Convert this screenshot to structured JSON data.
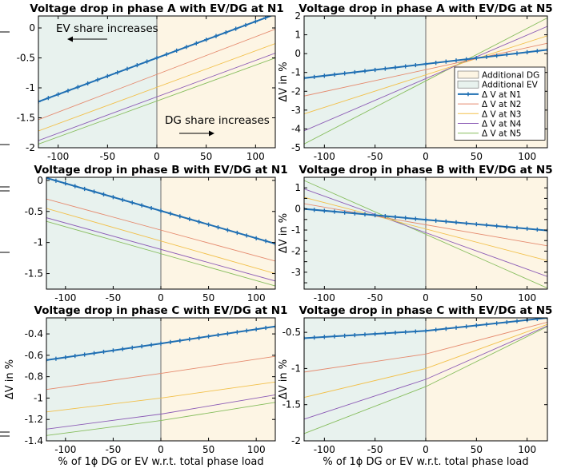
{
  "colors": {
    "ev_region": "#e8f2ee",
    "dg_region": "#fdf5e4",
    "N1": "#1f6fb3",
    "N2": "#e58a6e",
    "N3": "#f2c04a",
    "N4": "#8c5cb6",
    "N5": "#86bd5d"
  },
  "annotations": {
    "ev_share": "EV share increases",
    "dg_share": "DG share increases"
  },
  "chart_data": [
    {
      "type": "line",
      "title": "Voltage drop in phase A with EV/DG at N1",
      "xlabel": "",
      "ylabel": "",
      "xlim": [
        -120,
        120
      ],
      "ylim": [
        -2,
        0.2
      ],
      "xticks": [
        -100,
        -50,
        0,
        50,
        100
      ],
      "yticks": [
        0,
        -0.5,
        -1,
        -1.5,
        -2
      ],
      "ytick_labels": [
        "0",
        "-0.5",
        "-1",
        "-1.5",
        "-2"
      ],
      "regions": [
        {
          "label": "",
          "from": -120,
          "to": 0
        },
        {
          "label": "",
          "from": 0,
          "to": 120
        }
      ],
      "series": [
        {
          "key": "N1",
          "name": "",
          "x": [
            -120,
            120
          ],
          "y": [
            -1.23,
            0.23
          ],
          "markers": true
        },
        {
          "key": "N2",
          "name": "",
          "x": [
            -120,
            120
          ],
          "y": [
            -1.53,
            -0.02
          ],
          "markers": false
        },
        {
          "key": "N3",
          "name": "",
          "x": [
            -120,
            120
          ],
          "y": [
            -1.72,
            -0.26
          ],
          "markers": false
        },
        {
          "key": "N4",
          "name": "",
          "x": [
            -120,
            120
          ],
          "y": [
            -1.88,
            -0.42
          ],
          "markers": false
        },
        {
          "key": "N5",
          "name": "",
          "x": [
            -120,
            120
          ],
          "y": [
            -1.94,
            -0.5
          ],
          "markers": false
        }
      ]
    },
    {
      "type": "line",
      "title": "Voltage drop in phase A with EV/DG at N5",
      "xlabel": "",
      "ylabel": "ΔV in %",
      "xlim": [
        -120,
        120
      ],
      "ylim": [
        -5,
        2
      ],
      "xticks": [
        -100,
        -50,
        0,
        50,
        100
      ],
      "yticks": [
        2,
        1,
        0,
        -1,
        -2,
        -3,
        -4,
        -5
      ],
      "ytick_labels": [
        "2",
        "1",
        "0",
        "-1",
        "-2",
        "-3",
        "-4",
        "-5"
      ],
      "regions": [
        {
          "label": "Additional EV",
          "from": -120,
          "to": 0
        },
        {
          "label": "Additional DG",
          "from": 0,
          "to": 120
        }
      ],
      "legend_position": "right",
      "series": [
        {
          "key": "N1",
          "name": "Δ V at N1",
          "x": [
            -120,
            120
          ],
          "y": [
            -1.3,
            0.2
          ],
          "markers": true
        },
        {
          "key": "N2",
          "name": "Δ V at N2",
          "x": [
            -120,
            120
          ],
          "y": [
            -2.25,
            0.55
          ],
          "markers": false
        },
        {
          "key": "N3",
          "name": "Δ V at N3",
          "x": [
            -120,
            120
          ],
          "y": [
            -3.2,
            0.95
          ],
          "markers": false
        },
        {
          "key": "N4",
          "name": "Δ V at N4",
          "x": [
            -120,
            120
          ],
          "y": [
            -4.1,
            1.45
          ],
          "markers": false
        },
        {
          "key": "N5",
          "name": "Δ V at N5",
          "x": [
            -120,
            120
          ],
          "y": [
            -4.8,
            1.9
          ],
          "markers": false
        }
      ]
    },
    {
      "type": "line",
      "title": "Voltage drop in phase B with EV/DG at N1",
      "xlabel": "",
      "ylabel": "",
      "xlim": [
        -120,
        120
      ],
      "ylim": [
        -1.75,
        0.05
      ],
      "xticks": [
        -100,
        -50,
        0,
        50,
        100
      ],
      "yticks": [
        0,
        -0.5,
        -1,
        -1.5
      ],
      "ytick_labels": [
        "0",
        "-0.5",
        "-1",
        "-1.5"
      ],
      "regions": [
        {
          "label": "",
          "from": -120,
          "to": 0
        },
        {
          "label": "",
          "from": 0,
          "to": 120
        }
      ],
      "series": [
        {
          "key": "N1",
          "name": "",
          "x": [
            -120,
            120
          ],
          "y": [
            0.04,
            -1.02
          ],
          "markers": true
        },
        {
          "key": "N2",
          "name": "",
          "x": [
            -120,
            120
          ],
          "y": [
            -0.3,
            -1.3
          ],
          "markers": false
        },
        {
          "key": "N3",
          "name": "",
          "x": [
            -120,
            120
          ],
          "y": [
            -0.45,
            -1.5
          ],
          "markers": false
        },
        {
          "key": "N4",
          "name": "",
          "x": [
            -120,
            120
          ],
          "y": [
            -0.6,
            -1.62
          ],
          "markers": false
        },
        {
          "key": "N5",
          "name": "",
          "x": [
            -120,
            120
          ],
          "y": [
            -0.66,
            -1.7
          ],
          "markers": false
        }
      ]
    },
    {
      "type": "line",
      "title": "Voltage drop in phase B with EV/DG at N5",
      "xlabel": "",
      "ylabel": "ΔV in %",
      "xlim": [
        -120,
        120
      ],
      "ylim": [
        -3.8,
        1.5
      ],
      "xticks": [
        -100,
        -50,
        0,
        50,
        100
      ],
      "yticks": [
        1,
        0.5,
        0,
        -0.5,
        -1,
        -1.5,
        -2,
        -2.5,
        -3,
        -3.5
      ],
      "ytick_labels": [
        "1",
        "",
        "0",
        "",
        "-1",
        "",
        "-2",
        "",
        "-3",
        ""
      ],
      "regions": [
        {
          "label": "",
          "from": -120,
          "to": 0
        },
        {
          "label": "",
          "from": 0,
          "to": 120
        }
      ],
      "series": [
        {
          "key": "N1",
          "name": "",
          "x": [
            -120,
            120
          ],
          "y": [
            0.0,
            -1.02
          ],
          "markers": true
        },
        {
          "key": "N2",
          "name": "",
          "x": [
            -120,
            120
          ],
          "y": [
            0.25,
            -1.75
          ],
          "markers": false
        },
        {
          "key": "N3",
          "name": "",
          "x": [
            -120,
            120
          ],
          "y": [
            0.55,
            -2.45
          ],
          "markers": false
        },
        {
          "key": "N4",
          "name": "",
          "x": [
            -120,
            120
          ],
          "y": [
            0.95,
            -3.2
          ],
          "markers": false
        },
        {
          "key": "N5",
          "name": "",
          "x": [
            -120,
            120
          ],
          "y": [
            1.35,
            -3.75
          ],
          "markers": false
        }
      ]
    },
    {
      "type": "line",
      "title": "Voltage drop in phase C with EV/DG at N1",
      "xlabel": "% of 1ϕ DG or EV w.r.t. total phase load",
      "ylabel": "ΔV in %",
      "xlim": [
        -120,
        120
      ],
      "ylim": [
        -1.4,
        -0.25
      ],
      "xticks": [
        -100,
        -50,
        0,
        50,
        100
      ],
      "yticks": [
        -0.4,
        -0.6,
        -0.8,
        -1,
        -1.2,
        -1.4
      ],
      "ytick_labels": [
        "-0.4",
        "-0.6",
        "-0.8",
        "-1",
        "-1.2",
        "-1.4"
      ],
      "regions": [
        {
          "label": "",
          "from": -120,
          "to": 0
        },
        {
          "label": "",
          "from": 0,
          "to": 120
        }
      ],
      "series": [
        {
          "key": "N1",
          "name": "",
          "x": [
            -120,
            0,
            120
          ],
          "y": [
            -0.645,
            -0.49,
            -0.33
          ],
          "markers": true
        },
        {
          "key": "N2",
          "name": "",
          "x": [
            -120,
            0,
            120
          ],
          "y": [
            -0.92,
            -0.77,
            -0.61
          ],
          "markers": false
        },
        {
          "key": "N3",
          "name": "",
          "x": [
            -120,
            0,
            120
          ],
          "y": [
            -1.13,
            -1.0,
            -0.85
          ],
          "markers": false
        },
        {
          "key": "N4",
          "name": "",
          "x": [
            -120,
            0,
            120
          ],
          "y": [
            -1.29,
            -1.15,
            -0.97
          ],
          "markers": false
        },
        {
          "key": "N5",
          "name": "",
          "x": [
            -120,
            0,
            120
          ],
          "y": [
            -1.35,
            -1.21,
            -1.04
          ],
          "markers": false
        }
      ]
    },
    {
      "type": "line",
      "title": "Voltage drop in phase C with EV/DG at N5",
      "xlabel": "% of 1ϕ DG or EV w.r.t. total phase load",
      "ylabel": "ΔV in %",
      "xlim": [
        -120,
        120
      ],
      "ylim": [
        -2,
        -0.3
      ],
      "xticks": [
        -100,
        -50,
        0,
        50,
        100
      ],
      "yticks": [
        -0.5,
        -1,
        -1.5,
        -2
      ],
      "ytick_labels": [
        "-0.5",
        "-1",
        "-1.5",
        "-2"
      ],
      "regions": [
        {
          "label": "",
          "from": -120,
          "to": 0
        },
        {
          "label": "",
          "from": 0,
          "to": 120
        }
      ],
      "series": [
        {
          "key": "N1",
          "name": "",
          "x": [
            -120,
            0,
            120
          ],
          "y": [
            -0.58,
            -0.48,
            -0.3
          ],
          "markers": true
        },
        {
          "key": "N2",
          "name": "",
          "x": [
            -120,
            0,
            120
          ],
          "y": [
            -1.05,
            -0.8,
            -0.36
          ],
          "markers": false
        },
        {
          "key": "N3",
          "name": "",
          "x": [
            -120,
            0,
            120
          ],
          "y": [
            -1.4,
            -1.0,
            -0.39
          ],
          "markers": false
        },
        {
          "key": "N4",
          "name": "",
          "x": [
            -120,
            0,
            120
          ],
          "y": [
            -1.7,
            -1.15,
            -0.41
          ],
          "markers": false
        },
        {
          "key": "N5",
          "name": "",
          "x": [
            -120,
            0,
            120
          ],
          "y": [
            -1.9,
            -1.25,
            -0.42
          ],
          "markers": false
        }
      ]
    }
  ]
}
